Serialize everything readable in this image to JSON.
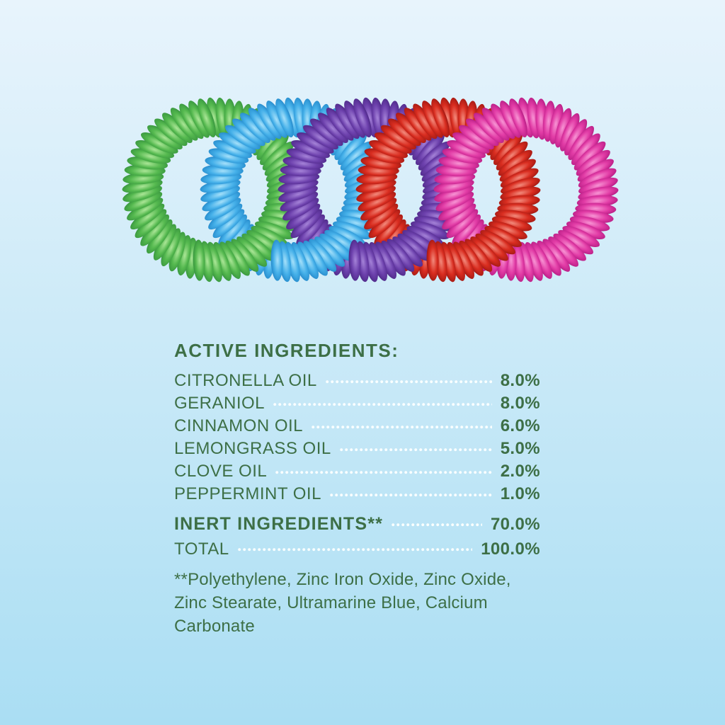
{
  "background": {
    "top_color": "#e8f4fc",
    "bottom_color": "#aadef3"
  },
  "text_color": "#3d6f46",
  "leader_dot_color": "#fcffff",
  "bracelets": {
    "description": "five-overlapping-coil-bracelets",
    "count": 5,
    "colors": [
      {
        "name": "green",
        "base": "#55b94f",
        "light": "#abe697",
        "dark": "#2e8a39"
      },
      {
        "name": "sky-blue",
        "base": "#45b0e9",
        "light": "#a5e0fa",
        "dark": "#1b7ec2"
      },
      {
        "name": "purple",
        "base": "#6d41ad",
        "light": "#a583d8",
        "dark": "#44217c"
      },
      {
        "name": "red",
        "base": "#d92d20",
        "light": "#f28b7d",
        "dark": "#8f120e"
      },
      {
        "name": "pink",
        "base": "#e23ca6",
        "light": "#f795d4",
        "dark": "#a81279"
      }
    ]
  },
  "ingredients_panel": {
    "title": "ACTIVE INGREDIENTS:",
    "rows": [
      {
        "label": "CITRONELLA OIL",
        "value": "8.0%"
      },
      {
        "label": "GERANIOL",
        "value": "8.0%"
      },
      {
        "label": "CINNAMON OIL",
        "value": "6.0%"
      },
      {
        "label": "LEMONGRASS OIL",
        "value": "5.0%"
      },
      {
        "label": "CLOVE OIL",
        "value": "2.0%"
      },
      {
        "label": "PEPPERMINT OIL",
        "value": "1.0%"
      }
    ],
    "summary_rows": [
      {
        "label": "INERT INGREDIENTS**",
        "value": "70.0%",
        "bold_label": true
      },
      {
        "label": "TOTAL",
        "value": "100.0%",
        "bold_label": false
      }
    ],
    "footnote": "**Polyethylene, Zinc Iron Oxide, Zinc Oxide, Zinc Stearate, Ultramarine Blue, Calcium Carbonate"
  }
}
